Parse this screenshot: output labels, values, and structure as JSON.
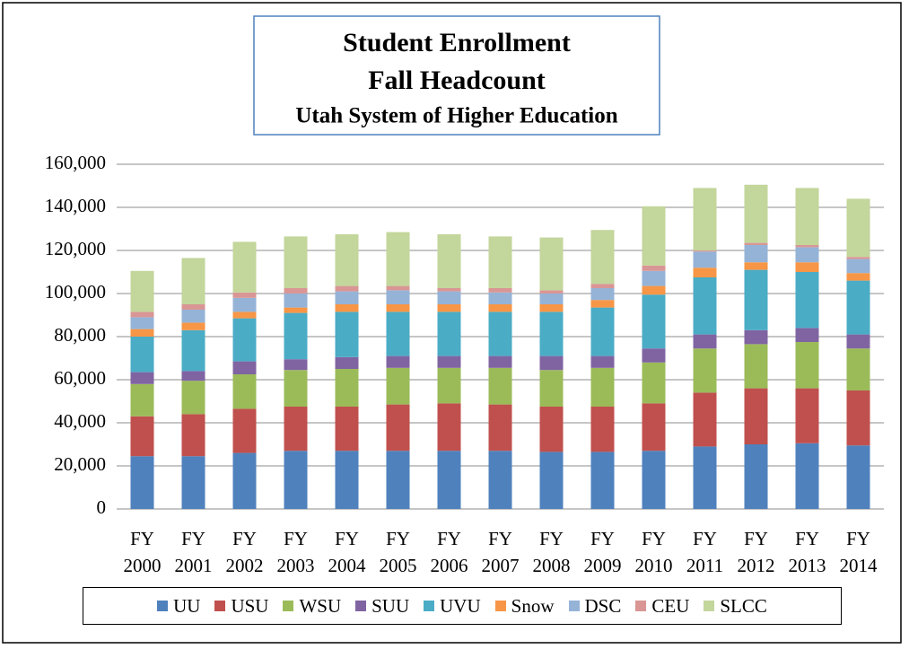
{
  "chart_data": {
    "type": "stacked_bar",
    "title": [
      "Student Enrollment",
      "Fall Headcount",
      "Utah System of Higher Education"
    ],
    "categories": [
      "FY 2000",
      "FY 2001",
      "FY 2002",
      "FY 2003",
      "FY 2004",
      "FY 2005",
      "FY 2006",
      "FY 2007",
      "FY 2008",
      "FY 2009",
      "FY 2010",
      "FY 2011",
      "FY 2012",
      "FY 2013",
      "FY 2014"
    ],
    "series": [
      {
        "name": "UU",
        "color": "#4f81bd",
        "values": [
          24500,
          24500,
          26000,
          27000,
          27000,
          27000,
          27000,
          27000,
          26500,
          26500,
          27000,
          29000,
          30000,
          30500,
          29500
        ]
      },
      {
        "name": "USU",
        "color": "#c0504d",
        "values": [
          18500,
          19500,
          20500,
          20500,
          20500,
          21500,
          22000,
          21500,
          21000,
          21000,
          22000,
          25000,
          26000,
          25500,
          25500
        ]
      },
      {
        "name": "WSU",
        "color": "#9bbb59",
        "values": [
          15000,
          15500,
          16000,
          17000,
          17500,
          17000,
          16500,
          17000,
          17000,
          18000,
          19000,
          20500,
          20500,
          21500,
          19500
        ]
      },
      {
        "name": "SUU",
        "color": "#8064a2",
        "values": [
          5500,
          4500,
          6000,
          5000,
          5500,
          5500,
          5500,
          5500,
          6500,
          5500,
          6500,
          6500,
          6500,
          6500,
          6500
        ]
      },
      {
        "name": "UVU",
        "color": "#4bacc6",
        "values": [
          16500,
          19000,
          20000,
          21500,
          21000,
          20500,
          20500,
          20500,
          20500,
          22500,
          25000,
          26500,
          28000,
          26000,
          25000
        ]
      },
      {
        "name": "Snow",
        "color": "#f79646",
        "values": [
          3500,
          3500,
          3000,
          2500,
          3500,
          3500,
          3500,
          3500,
          3500,
          3500,
          4000,
          4500,
          3500,
          4500,
          3500
        ]
      },
      {
        "name": "DSC",
        "color": "#95b3d7",
        "values": [
          5500,
          6000,
          6500,
          6500,
          6000,
          6500,
          6000,
          5500,
          5000,
          5500,
          7000,
          7500,
          8000,
          7000,
          6500
        ]
      },
      {
        "name": "CEU",
        "color": "#d99694",
        "values": [
          2500,
          2500,
          2500,
          2500,
          2500,
          2000,
          1500,
          2000,
          1500,
          2000,
          2500,
          500,
          1000,
          1000,
          1000
        ]
      },
      {
        "name": "SLCC",
        "color": "#c3d69b",
        "values": [
          19000,
          21500,
          23500,
          24000,
          24000,
          25000,
          25000,
          24000,
          24500,
          25000,
          27500,
          29000,
          27000,
          26500,
          27000
        ]
      }
    ],
    "ylim": [
      0,
      160000
    ],
    "yticks": [
      0,
      {
        "value": 20000,
        "label": "20,000"
      },
      {
        "value": 40000,
        "label": "40,000"
      },
      {
        "value": 60000,
        "label": "60,000"
      },
      {
        "value": 80000,
        "label": "80,000"
      },
      {
        "value": 100000,
        "label": "100,000"
      },
      {
        "value": 120000,
        "label": "120,000"
      },
      {
        "value": 140000,
        "label": "140,000"
      },
      {
        "value": 160000,
        "label": "160,000"
      }
    ],
    "grid": true,
    "legend": "bottom"
  }
}
